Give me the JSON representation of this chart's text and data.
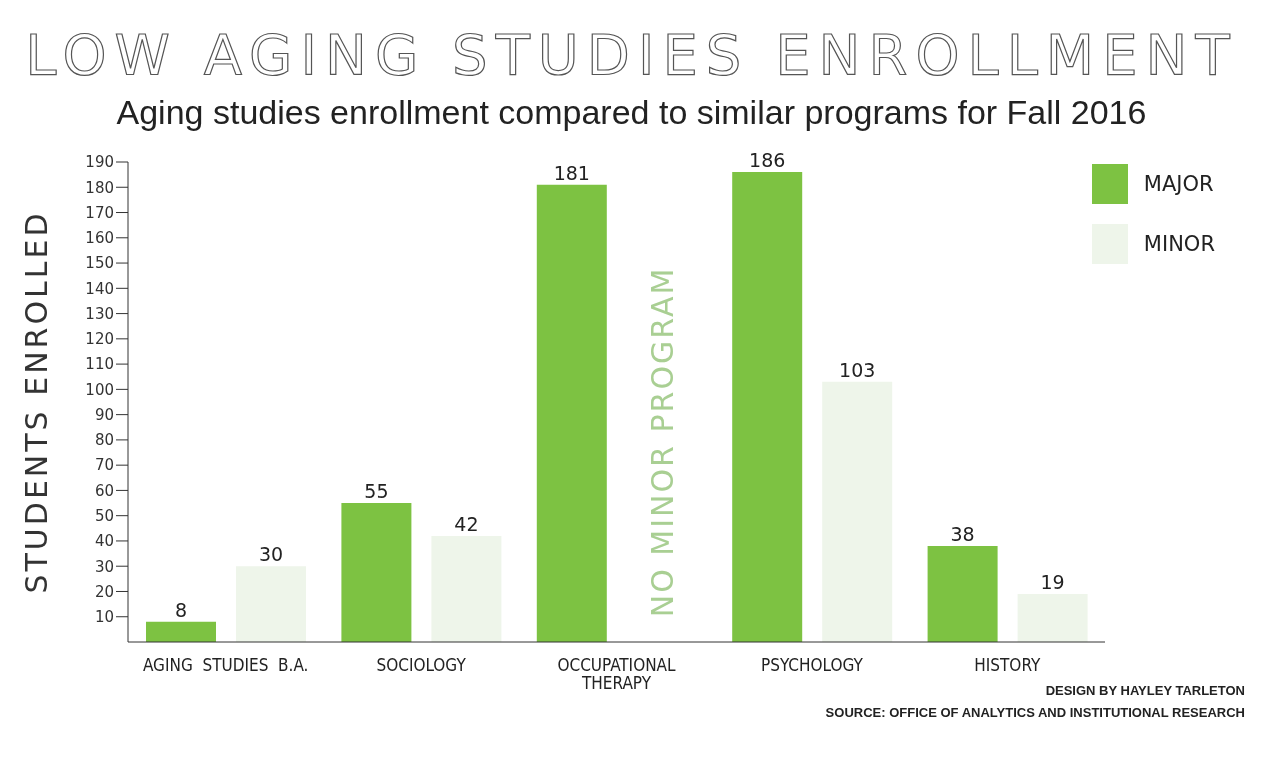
{
  "chart_data": {
    "type": "bar",
    "title": "LOW AGING STUDIES ENROLLMENT",
    "subtitle": "Aging studies enrollment compared to similar programs for Fall 2016",
    "ylabel": "STUDENTS ENROLLED",
    "categories": [
      "AGING  STUDIES  B.A.",
      "SOCIOLOGY",
      "OCCUPATIONAL\nTHERAPY",
      "PSYCHOLOGY",
      "HISTORY"
    ],
    "series": [
      {
        "name": "MAJOR",
        "color": "#7dc242",
        "values": [
          8,
          55,
          181,
          186,
          38
        ]
      },
      {
        "name": "MINOR",
        "color": "#eef5ea",
        "values": [
          30,
          42,
          null,
          103,
          19
        ]
      }
    ],
    "ylim": [
      0,
      190
    ],
    "yticks": [
      10,
      20,
      30,
      40,
      50,
      60,
      70,
      80,
      90,
      100,
      110,
      120,
      130,
      140,
      150,
      160,
      170,
      180,
      190
    ],
    "legend": "top right",
    "data_labels": true,
    "annotations": [
      "NO MINOR PROGRAM",
      "DESIGN BY HAYLEY TARLETON",
      "SOURCE: OFFICE OF ANALYTICS AND INSTITUTIONAL RESEARCH"
    ]
  }
}
